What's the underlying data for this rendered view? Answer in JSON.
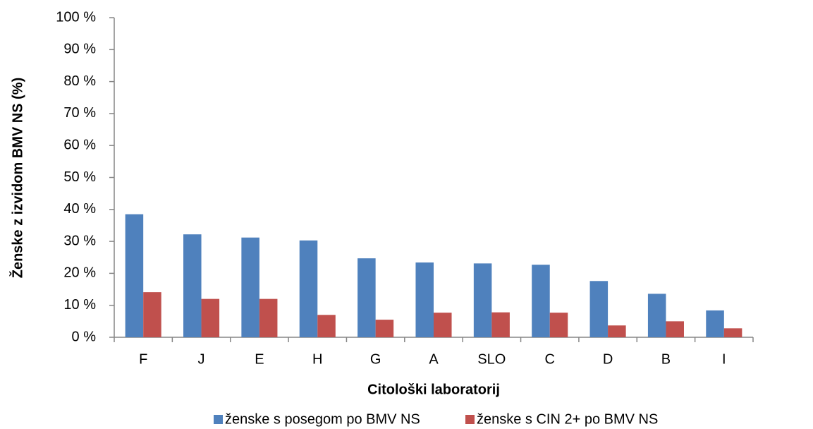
{
  "chart_data": {
    "type": "bar",
    "y_label": "Ženske z izvidom BMV NS (%)",
    "x_label": "Citološki laboratorij",
    "categories": [
      "F",
      "J",
      "E",
      "H",
      "G",
      "A",
      "SLO",
      "C",
      "D",
      "B",
      "I"
    ],
    "series": [
      {
        "name": "ženske s posegom po BMV NS",
        "color": "#4f81bd",
        "values": [
          38.5,
          32.2,
          31.2,
          30.3,
          24.7,
          23.4,
          23.1,
          22.7,
          17.6,
          13.6,
          8.4
        ]
      },
      {
        "name": "ženske s CIN 2+ po BMV NS",
        "color": "#c0504d",
        "values": [
          14.1,
          12.0,
          12.0,
          7.0,
          5.5,
          7.7,
          7.8,
          7.7,
          3.7,
          5.0,
          2.8
        ]
      }
    ],
    "ylim": [
      0,
      100
    ],
    "yticks": [
      {
        "value": 0,
        "label": "0 %"
      },
      {
        "value": 10,
        "label": "10 %"
      },
      {
        "value": 20,
        "label": "20 %"
      },
      {
        "value": 30,
        "label": "30 %"
      },
      {
        "value": 40,
        "label": "40 %"
      },
      {
        "value": 50,
        "label": "50 %"
      },
      {
        "value": 60,
        "label": "60 %"
      },
      {
        "value": 70,
        "label": "70 %"
      },
      {
        "value": 80,
        "label": "80 %"
      },
      {
        "value": 90,
        "label": "90 %"
      },
      {
        "value": 100,
        "label": "100 %"
      }
    ],
    "legend": "bottom",
    "grid": false
  }
}
